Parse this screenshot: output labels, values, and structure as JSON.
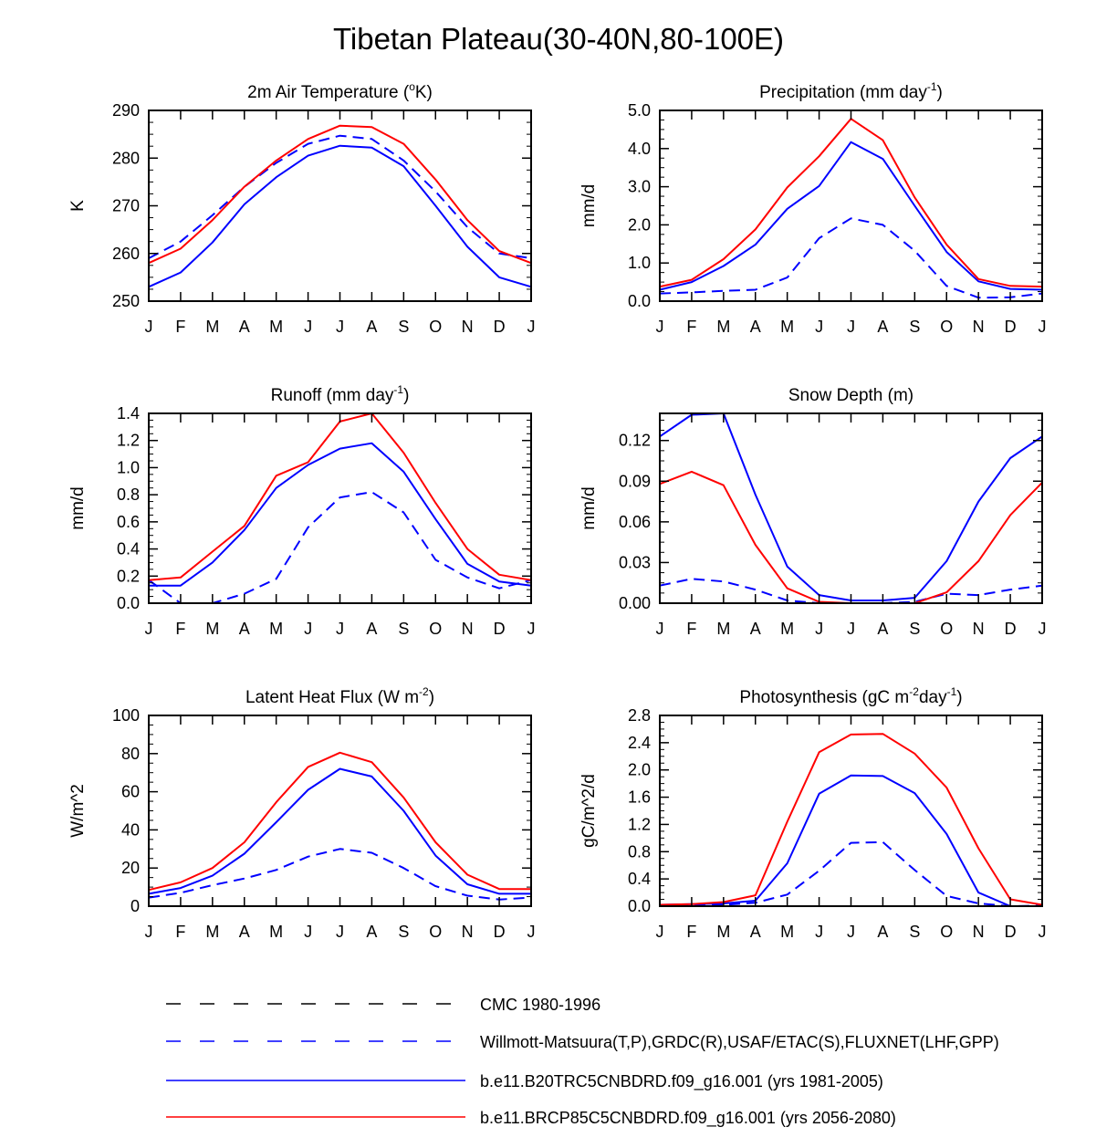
{
  "title": "Tibetan Plateau(30-40N,80-100E)",
  "colors": {
    "obs": "#0000ff",
    "model_1981_2005": "#0000ff",
    "model_2056_2080": "#ff0000",
    "cmc": "#000000"
  },
  "legend": [
    {
      "label": "CMC 1980-1996",
      "style": "dashed",
      "color": "#000000"
    },
    {
      "label": "Willmott-Matsuura(T,P),GRDC(R),USAF/ETAC(S),FLUXNET(LHF,GPP)",
      "style": "dashed",
      "color": "#0000ff"
    },
    {
      "label": "b.e11.B20TRC5CNBDRD.f09_g16.001 (yrs 1981-2005)",
      "style": "solid",
      "color": "#0000ff"
    },
    {
      "label": "b.e11.BRCP85C5CNBDRD.f09_g16.001 (yrs 2056-2080)",
      "style": "solid",
      "color": "#ff0000"
    }
  ],
  "chart_data": [
    {
      "type": "line",
      "title_main": "2m Air Temperature (",
      "title_sup": "o",
      "title_end": "K)",
      "ylabel": "K",
      "categories": [
        "J",
        "F",
        "M",
        "A",
        "M",
        "J",
        "J",
        "A",
        "S",
        "O",
        "N",
        "D",
        "J"
      ],
      "ylim": [
        250,
        290
      ],
      "yticks": [
        "250",
        "260",
        "270",
        "280",
        "290"
      ],
      "series": [
        {
          "name": "Willmott-Matsuura(T,P),GRDC(R),USAF/ETAC(S),FLUXNET(LHF,GPP)",
          "style": "dashed",
          "color": "#0000ff",
          "values": [
            259.0,
            262.5,
            268.0,
            274.0,
            279.0,
            283.0,
            284.7,
            284.0,
            279.5,
            273.0,
            265.5,
            260.0,
            259.0
          ]
        },
        {
          "name": "b.e11.B20TRC5CNBDRD.f09_g16.001 (yrs 1981-2005)",
          "style": "solid",
          "color": "#0000ff",
          "values": [
            253.0,
            256.0,
            262.3,
            270.3,
            276.0,
            280.5,
            282.6,
            282.2,
            278.3,
            270.0,
            261.4,
            255.0,
            253.0
          ]
        },
        {
          "name": "b.e11.BRCP85C5CNBDRD.f09_g16.001 (yrs 2056-2080)",
          "style": "solid",
          "color": "#ff0000",
          "values": [
            258.0,
            261.0,
            267.0,
            274.0,
            279.5,
            284.0,
            286.8,
            286.5,
            283.0,
            275.5,
            267.0,
            260.5,
            258.0
          ]
        }
      ]
    },
    {
      "type": "line",
      "title_main": "Precipitation (mm day",
      "title_sup": "-1",
      "title_end": ")",
      "ylabel": "mm/d",
      "categories": [
        "J",
        "F",
        "M",
        "A",
        "M",
        "J",
        "J",
        "A",
        "S",
        "O",
        "N",
        "D",
        "J"
      ],
      "ylim": [
        0,
        5
      ],
      "yticks": [
        "0.0",
        "1.0",
        "2.0",
        "3.0",
        "4.0",
        "5.0"
      ],
      "series": [
        {
          "name": "Willmott-Matsuura(T,P),GRDC(R),USAF/ETAC(S),FLUXNET(LHF,GPP)",
          "style": "dashed",
          "color": "#0000ff",
          "values": [
            0.2,
            0.23,
            0.27,
            0.3,
            0.62,
            1.65,
            2.17,
            2.0,
            1.32,
            0.4,
            0.09,
            0.1,
            0.2
          ]
        },
        {
          "name": "b.e11.B20TRC5CNBDRD.f09_g16.001 (yrs 1981-2005)",
          "style": "solid",
          "color": "#0000ff",
          "values": [
            0.3,
            0.5,
            0.92,
            1.48,
            2.42,
            3.02,
            4.17,
            3.73,
            2.5,
            1.29,
            0.52,
            0.32,
            0.3
          ]
        },
        {
          "name": "b.e11.BRCP85C5CNBDRD.f09_g16.001 (yrs 2056-2080)",
          "style": "solid",
          "color": "#ff0000",
          "values": [
            0.38,
            0.56,
            1.1,
            1.88,
            2.98,
            3.8,
            4.78,
            4.22,
            2.72,
            1.48,
            0.58,
            0.4,
            0.38
          ]
        }
      ]
    },
    {
      "type": "line",
      "title_main": "Runoff (mm day",
      "title_sup": "-1",
      "title_end": ")",
      "ylabel": "mm/d",
      "categories": [
        "J",
        "F",
        "M",
        "A",
        "M",
        "J",
        "J",
        "A",
        "S",
        "O",
        "N",
        "D",
        "J"
      ],
      "ylim": [
        0,
        1.4
      ],
      "yticks": [
        "0.0",
        "0.2",
        "0.4",
        "0.6",
        "0.8",
        "1.0",
        "1.2",
        "1.4"
      ],
      "series": [
        {
          "name": "Willmott-Matsuura(T,P),GRDC(R),USAF/ETAC(S),FLUXNET(LHF,GPP)",
          "style": "dashed",
          "color": "#0000ff",
          "values": [
            0.17,
            0.0,
            0.0,
            0.07,
            0.18,
            0.56,
            0.78,
            0.82,
            0.67,
            0.32,
            0.19,
            0.11,
            0.17
          ]
        },
        {
          "name": "b.e11.B20TRC5CNBDRD.f09_g16.001 (yrs 1981-2005)",
          "style": "solid",
          "color": "#0000ff",
          "values": [
            0.13,
            0.13,
            0.3,
            0.54,
            0.85,
            1.02,
            1.14,
            1.18,
            0.97,
            0.62,
            0.29,
            0.16,
            0.13
          ]
        },
        {
          "name": "b.e11.BRCP85C5CNBDRD.f09_g16.001 (yrs 2056-2080)",
          "style": "solid",
          "color": "#ff0000",
          "values": [
            0.17,
            0.19,
            0.38,
            0.57,
            0.94,
            1.04,
            1.34,
            1.4,
            1.11,
            0.74,
            0.4,
            0.21,
            0.17
          ]
        }
      ]
    },
    {
      "type": "line",
      "title_main": "Snow Depth (m)",
      "title_sup": "",
      "title_end": "",
      "ylabel": "mm/d",
      "categories": [
        "J",
        "F",
        "M",
        "A",
        "M",
        "J",
        "J",
        "A",
        "S",
        "O",
        "N",
        "D",
        "J"
      ],
      "ylim": [
        0,
        0.14
      ],
      "yticks": [
        "0.00",
        "0.03",
        "0.06",
        "0.09",
        "0.12"
      ],
      "series": [
        {
          "name": "CMC 1980-1996",
          "style": "dashed",
          "color": "#000000",
          "values": [
            0,
            0,
            0,
            0,
            0,
            0,
            0,
            0,
            0,
            0,
            0,
            0,
            0
          ]
        },
        {
          "name": "Willmott-Matsuura(T,P),GRDC(R),USAF/ETAC(S),FLUXNET(LHF,GPP)",
          "style": "dashed",
          "color": "#0000ff",
          "values": [
            0.013,
            0.018,
            0.016,
            0.01,
            0.002,
            0.0,
            0.0,
            0.0,
            0.001,
            0.007,
            0.006,
            0.01,
            0.013
          ]
        },
        {
          "name": "b.e11.B20TRC5CNBDRD.f09_g16.001 (yrs 1981-2005)",
          "style": "solid",
          "color": "#0000ff",
          "values": [
            0.123,
            0.139,
            0.14,
            0.08,
            0.027,
            0.006,
            0.002,
            0.002,
            0.004,
            0.031,
            0.075,
            0.107,
            0.123
          ]
        },
        {
          "name": "b.e11.BRCP85C5CNBDRD.f09_g16.001 (yrs 2056-2080)",
          "style": "solid",
          "color": "#ff0000",
          "values": [
            0.088,
            0.097,
            0.087,
            0.043,
            0.011,
            0.001,
            0.0,
            0.0,
            0.0,
            0.008,
            0.031,
            0.065,
            0.089
          ]
        }
      ]
    },
    {
      "type": "line",
      "title_main": "Latent Heat Flux (W m",
      "title_sup": "-2",
      "title_end": ")",
      "ylabel": "W/m^2",
      "categories": [
        "J",
        "F",
        "M",
        "A",
        "M",
        "J",
        "J",
        "A",
        "S",
        "O",
        "N",
        "D",
        "J"
      ],
      "ylim": [
        0,
        100
      ],
      "yticks": [
        "0",
        "20",
        "40",
        "60",
        "80",
        "100"
      ],
      "series": [
        {
          "name": "Willmott-Matsuura(T,P),GRDC(R),USAF/ETAC(S),FLUXNET(LHF,GPP)",
          "style": "dashed",
          "color": "#0000ff",
          "values": [
            4.5,
            7.0,
            11.0,
            14.5,
            19.0,
            26.0,
            30.0,
            28.0,
            20.0,
            10.5,
            5.5,
            3.5,
            4.5
          ]
        },
        {
          "name": "b.e11.B20TRC5CNBDRD.f09_g16.001 (yrs 1981-2005)",
          "style": "solid",
          "color": "#0000ff",
          "values": [
            6.5,
            9.5,
            16.0,
            27.5,
            44.0,
            61.0,
            72.0,
            68.0,
            50.0,
            26.5,
            11.5,
            6.5,
            6.5
          ]
        },
        {
          "name": "b.e11.BRCP85C5CNBDRD.f09_g16.001 (yrs 2056-2080)",
          "style": "solid",
          "color": "#ff0000",
          "values": [
            8.5,
            12.5,
            20.0,
            33.5,
            54.5,
            73.0,
            80.5,
            75.5,
            57.0,
            33.5,
            16.5,
            9.0,
            9.0
          ]
        }
      ]
    },
    {
      "type": "line",
      "title_main": "Photosynthesis (gC m",
      "title_sup": "-2",
      "title_mid": "day",
      "title_sup2": "-1",
      "title_end": ")",
      "ylabel": "gC/m^2/d",
      "categories": [
        "J",
        "F",
        "M",
        "A",
        "M",
        "J",
        "J",
        "A",
        "S",
        "O",
        "N",
        "D",
        "J"
      ],
      "ylim": [
        0,
        2.8
      ],
      "yticks": [
        "0.0",
        "0.4",
        "0.8",
        "1.2",
        "1.6",
        "2.0",
        "2.4",
        "2.8"
      ],
      "series": [
        {
          "name": "Willmott-Matsuura(T,P),GRDC(R),USAF/ETAC(S),FLUXNET(LHF,GPP)",
          "style": "dashed",
          "color": "#0000ff",
          "values": [
            0.01,
            0.01,
            0.02,
            0.05,
            0.17,
            0.52,
            0.93,
            0.94,
            0.53,
            0.15,
            0.04,
            0.0,
            0.01
          ]
        },
        {
          "name": "b.e11.B20TRC5CNBDRD.f09_g16.001 (yrs 1981-2005)",
          "style": "solid",
          "color": "#0000ff",
          "values": [
            0.02,
            0.03,
            0.04,
            0.08,
            0.63,
            1.65,
            1.92,
            1.91,
            1.66,
            1.06,
            0.2,
            0.0,
            0.0
          ]
        },
        {
          "name": "b.e11.BRCP85C5CNBDRD.f09_g16.001 (yrs 2056-2080)",
          "style": "solid",
          "color": "#ff0000",
          "values": [
            0.02,
            0.03,
            0.06,
            0.16,
            1.24,
            2.26,
            2.52,
            2.53,
            2.24,
            1.74,
            0.85,
            0.1,
            0.02
          ]
        }
      ]
    }
  ]
}
